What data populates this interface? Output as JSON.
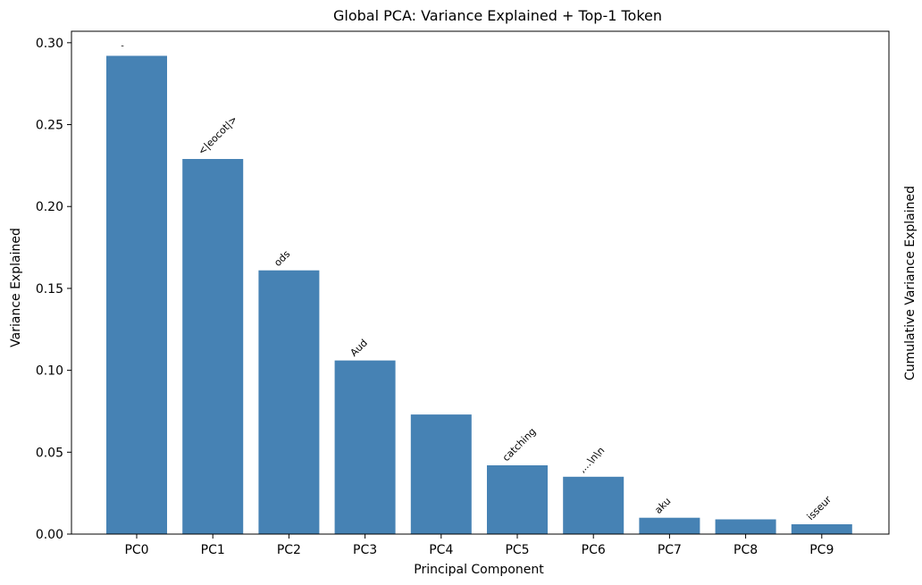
{
  "chart_data": {
    "type": "bar",
    "title": "Global PCA: Variance Explained + Top-1 Token",
    "xlabel": "Principal Component",
    "ylabel": "Variance Explained",
    "ylabel_right": "Cumulative Variance Explained",
    "categories": [
      "PC0",
      "PC1",
      "PC2",
      "PC3",
      "PC4",
      "PC5",
      "PC6",
      "PC7",
      "PC8",
      "PC9"
    ],
    "values": [
      0.292,
      0.229,
      0.161,
      0.106,
      0.073,
      0.042,
      0.035,
      0.01,
      0.009,
      0.006
    ],
    "tokens": [
      "`",
      "<|eocot|>",
      "ods",
      "Aud",
      "",
      "catching",
      ",...\\n\\n",
      "aku",
      "",
      "isseur"
    ],
    "ylim": [
      0,
      0.3
    ],
    "yticks": [
      "0.00",
      "0.05",
      "0.10",
      "0.15",
      "0.20",
      "0.25",
      "0.30"
    ],
    "bar_color": "#4682b4",
    "grid": false
  }
}
